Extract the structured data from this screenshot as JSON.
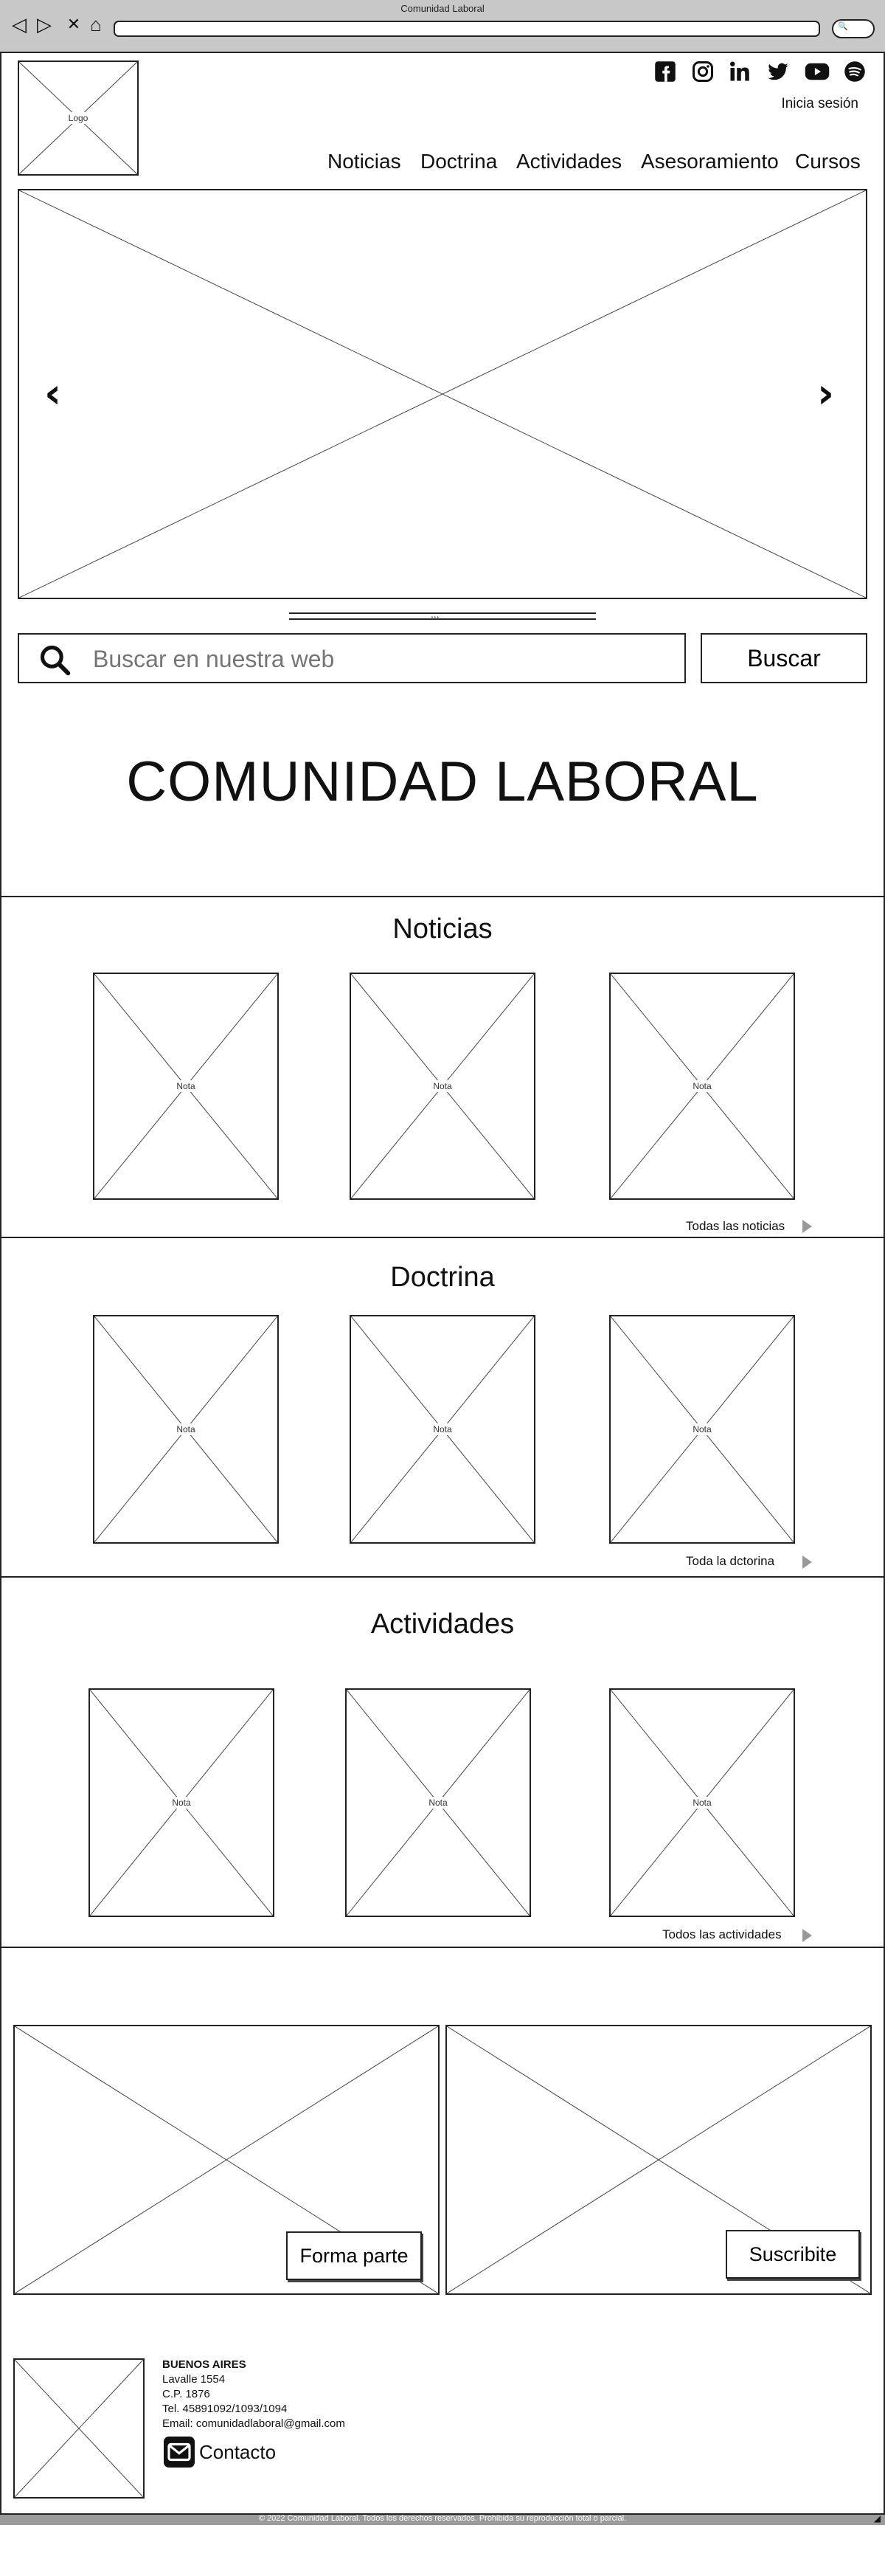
{
  "browser": {
    "title": "Comunidad Laboral",
    "back_glyph": "◁",
    "forward_glyph": "▷",
    "close_glyph": "✕",
    "home_glyph": "⌂",
    "url": "",
    "search_glyph": "🔍"
  },
  "header": {
    "logo_label": "Logo",
    "social_icons": [
      "facebook-icon",
      "instagram-icon",
      "linkedin-icon",
      "twitter-icon",
      "youtube-icon",
      "spotify-icon"
    ],
    "login": "Inicia sesión",
    "menu": [
      "Noticias",
      "Doctrina",
      "Actividades",
      "Asesoramiento",
      "Cursos"
    ]
  },
  "carousel": {
    "prev_glyph": "‹",
    "next_glyph": "›",
    "dots": "..."
  },
  "search": {
    "placeholder": "Buscar en nuestra web",
    "button": "Buscar"
  },
  "hero": {
    "heading": "COMUNIDAD LABORAL"
  },
  "sections": {
    "noticias": {
      "title": "Noticias",
      "cards": [
        "Nota",
        "Nota",
        "Nota"
      ],
      "see_all": "Todas las noticias"
    },
    "doctrina": {
      "title": "Doctrina",
      "cards": [
        "Nota",
        "Nota",
        "Nota"
      ],
      "see_all": "Toda la dctorina"
    },
    "actividades": {
      "title": "Actividades",
      "cards": [
        "Nota",
        "Nota",
        "Nota"
      ],
      "see_all": "Todos las actividades"
    }
  },
  "cta": {
    "join": "Forma parte",
    "subscribe": "Suscribite"
  },
  "footer": {
    "city": "BUENOS AIRES",
    "address": "Lavalle 1554",
    "postal": "C.P. 1876",
    "phone": "Tel. 45891092/1093/1094",
    "email": "Email: comunidadlaboral@gmail.com",
    "contact": "Contacto",
    "copyright": "© 2022 Comunidad Laboral. Todos los derechos reservados. Prohibida su reproducción total o parcial.",
    "resize_glyph": "◢"
  },
  "colors": {
    "stroke": "#222222",
    "chrome": "#c8c8c8",
    "statusbar": "#9a9a9a"
  }
}
